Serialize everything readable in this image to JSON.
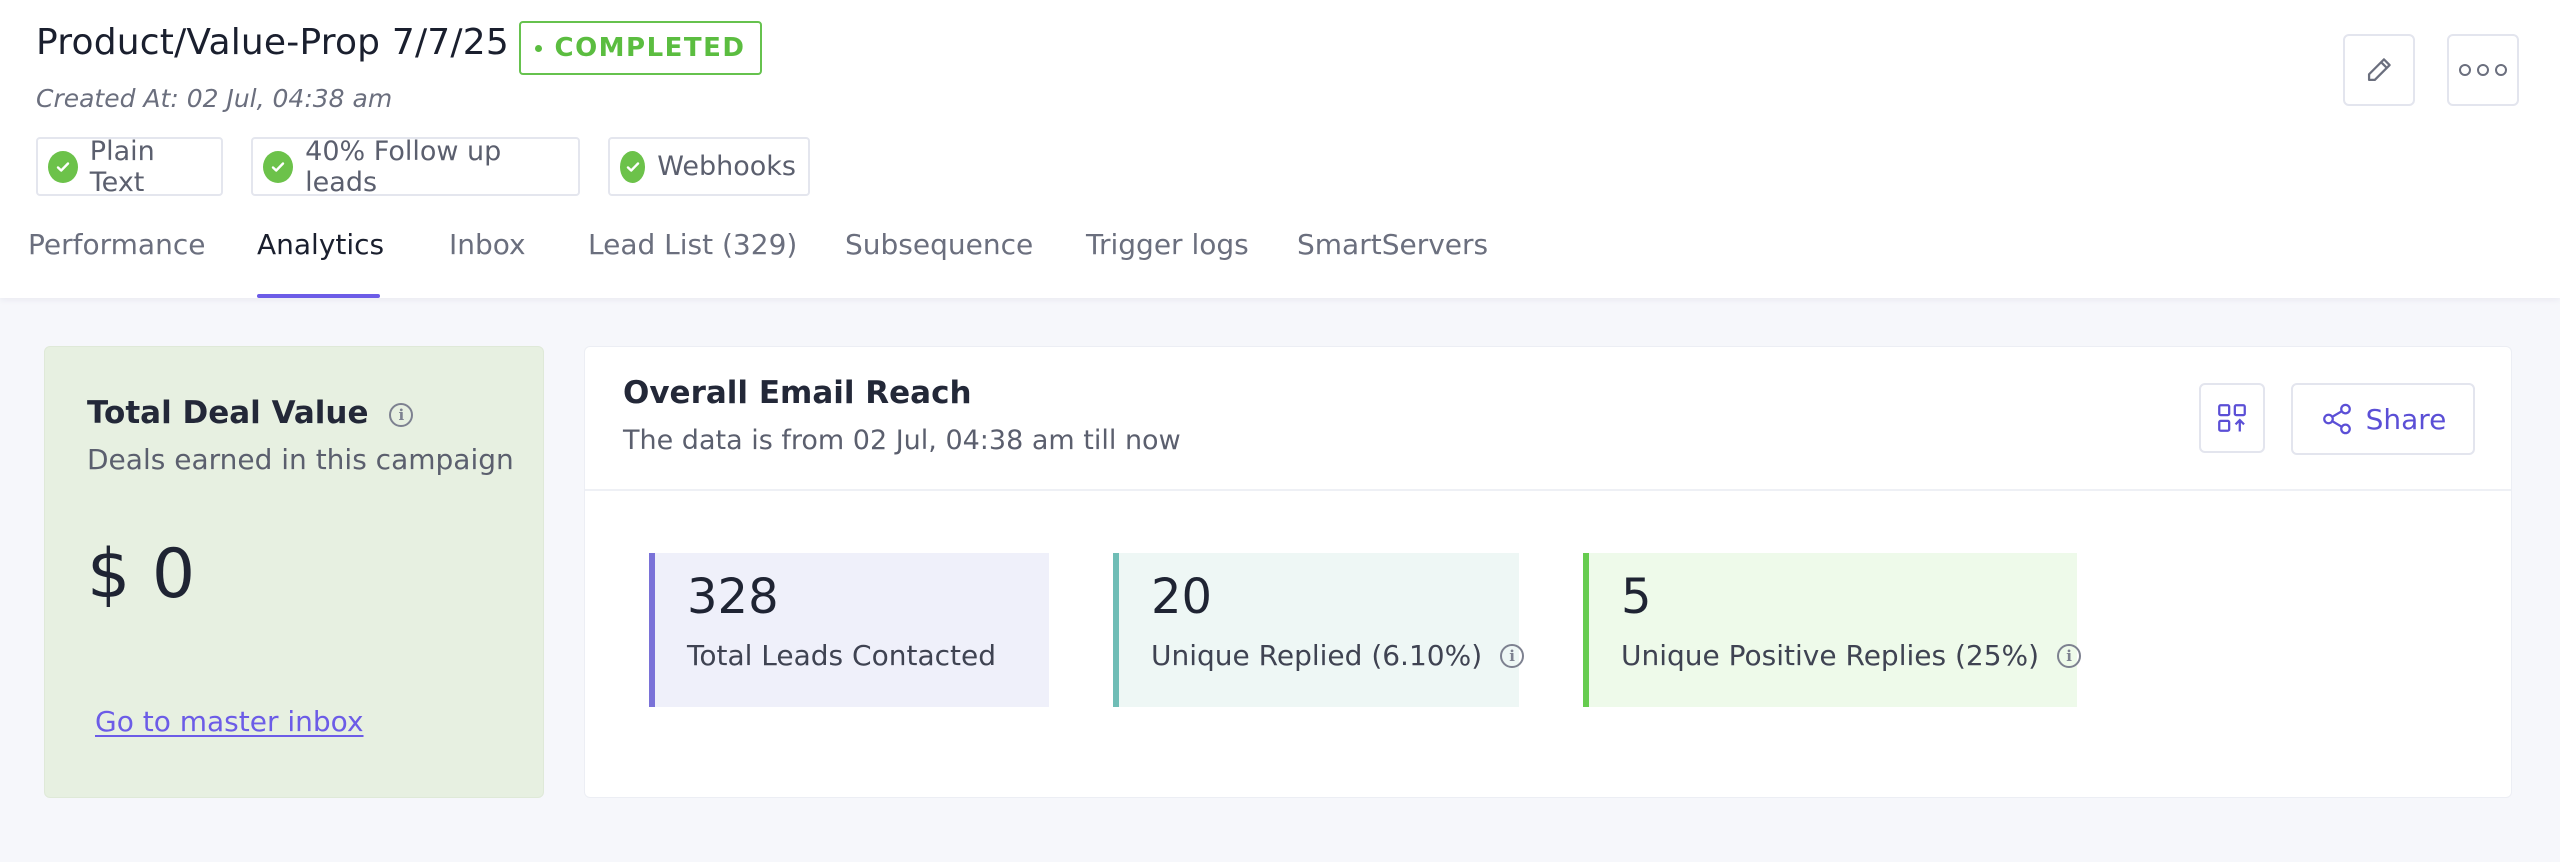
{
  "campaign": {
    "title": "Product/Value-Prop 7/7/25",
    "status": "COMPLETED",
    "created_at": "Created At: 02 Jul, 04:38 am",
    "features": [
      "Plain Text",
      "40% Follow up leads",
      "Webhooks"
    ]
  },
  "header_actions": {
    "edit_icon": "pencil-icon",
    "more_icon": "more-horizontal-icon"
  },
  "tabs": [
    {
      "label": "Performance"
    },
    {
      "label": "Analytics"
    },
    {
      "label": "Inbox"
    },
    {
      "label": "Lead List (329)"
    },
    {
      "label": "Subsequence"
    },
    {
      "label": "Trigger logs"
    },
    {
      "label": "SmartServers"
    }
  ],
  "active_tab": "Analytics",
  "deal_card": {
    "title": "Total Deal Value",
    "subtitle": "Deals earned in this campaign",
    "value": "$ 0",
    "link": "Go to master inbox"
  },
  "reach_card": {
    "title": "Overall Email Reach",
    "subtitle": "The data is from 02 Jul, 04:38 am till now",
    "share_label": "Share",
    "stats": [
      {
        "value": "328",
        "label": "Total Leads Contacted",
        "info": false
      },
      {
        "value": "20",
        "label": "Unique Replied (6.10%)",
        "info": true
      },
      {
        "value": "5",
        "label": "Unique Positive Replies (25%)",
        "info": true
      }
    ]
  },
  "colors": {
    "accent": "#6c5ce7",
    "success": "#5bbd40",
    "stat1_border": "#7a72d8",
    "stat1_bg": "#eff0fa",
    "stat2_border": "#6fbdb6",
    "stat2_bg": "#eef7f5",
    "stat3_border": "#66cc4f",
    "stat3_bg": "#eefaea",
    "deal_bg": "#e7f0e1"
  }
}
